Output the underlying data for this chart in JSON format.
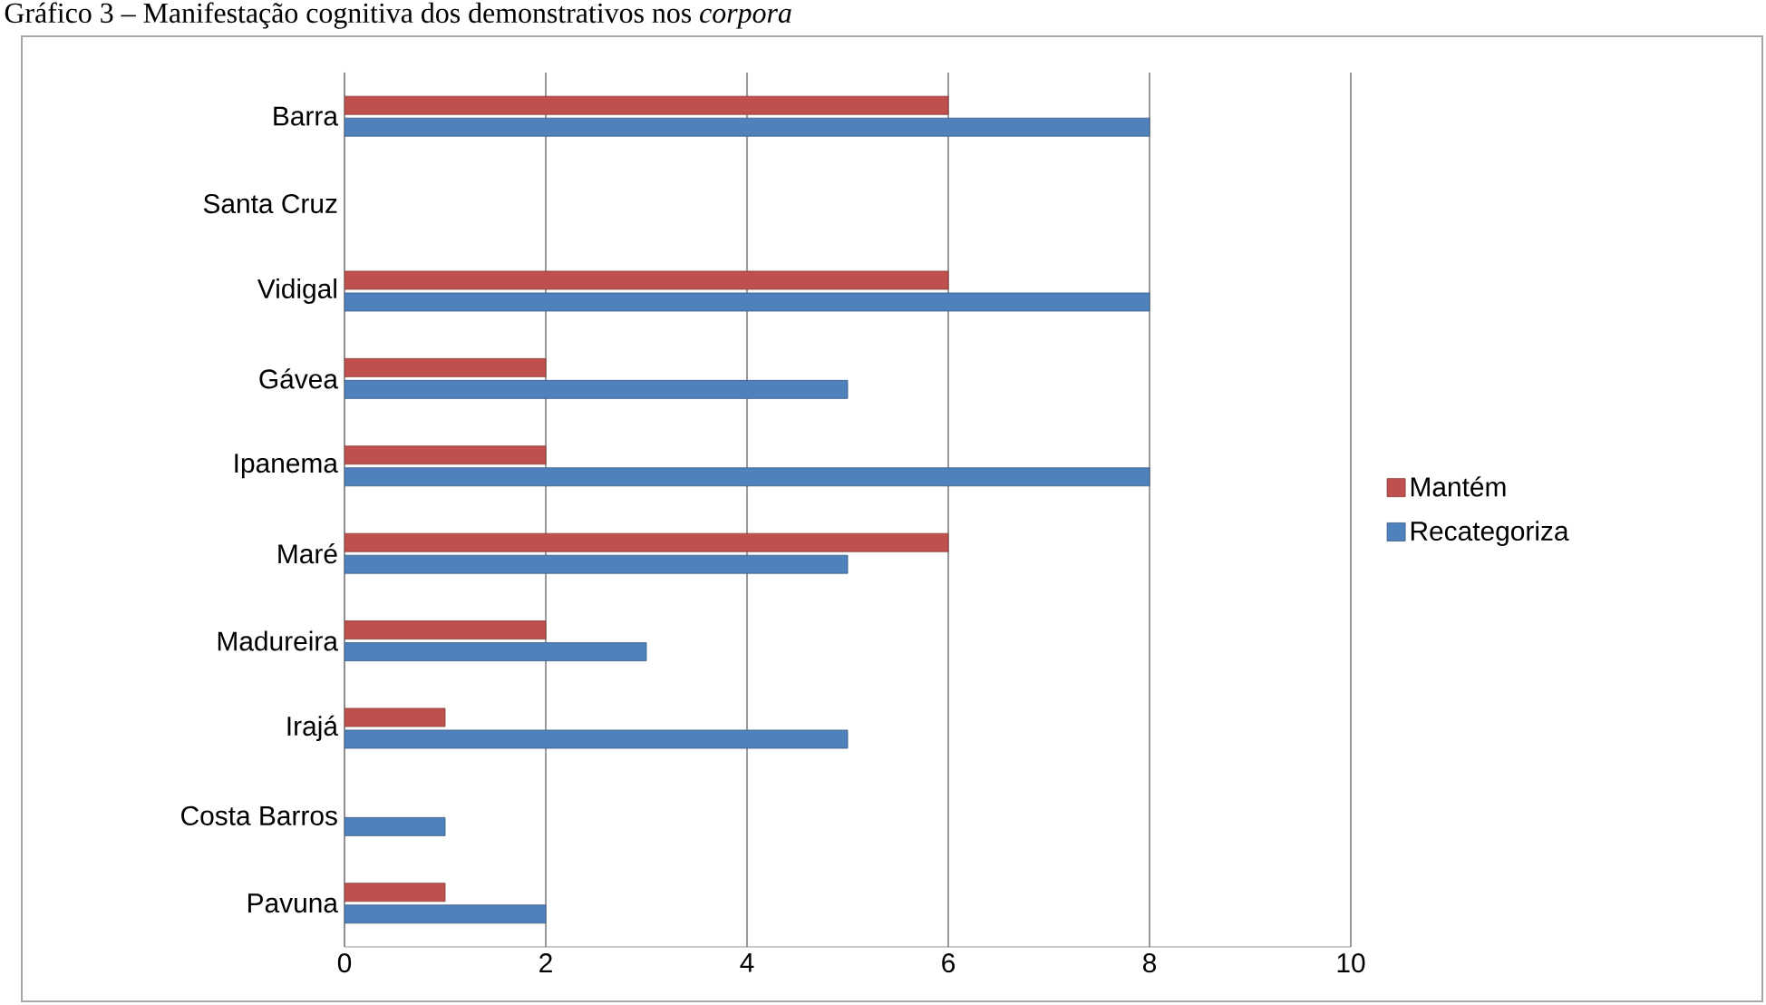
{
  "chart_data": {
    "type": "bar",
    "orientation": "horizontal",
    "title": "Gráfico 3 – Manifestação cognitiva dos demonstrativos nos *corpora*",
    "categories": [
      "Barra",
      "Santa Cruz",
      "Vidigal",
      "Gávea",
      "Ipanema",
      "Maré",
      "Madureira",
      "Irajá",
      "Costa Barros",
      "Pavuna"
    ],
    "series": [
      {
        "name": "Mantém",
        "color": "#c0504d",
        "values": [
          6,
          null,
          6,
          2,
          2,
          6,
          2,
          1,
          null,
          1
        ]
      },
      {
        "name": "Recategoriza",
        "color": "#4f81bd",
        "values": [
          8,
          null,
          8,
          5,
          8,
          5,
          3,
          5,
          1,
          2
        ]
      }
    ],
    "xlim": [
      0,
      10
    ],
    "xticks": [
      0,
      2,
      4,
      6,
      8,
      10
    ],
    "grid": "x",
    "legend": "right"
  }
}
